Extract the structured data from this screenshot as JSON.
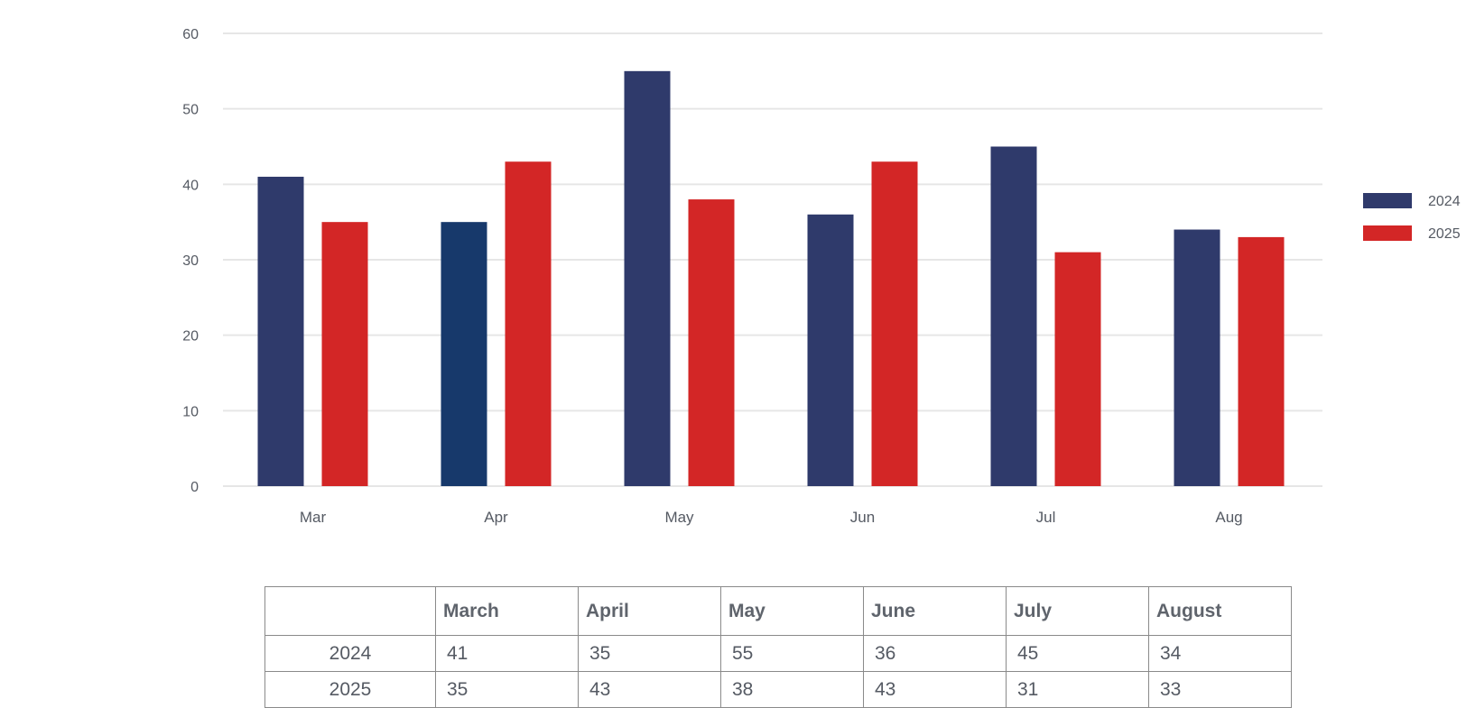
{
  "chart_data": {
    "type": "bar",
    "categories": [
      "Mar",
      "Apr",
      "May",
      "Jun",
      "Jul",
      "Aug"
    ],
    "series": [
      {
        "name": "2024",
        "values": [
          41,
          35,
          55,
          36,
          45,
          34
        ],
        "color": "#2f3a6b"
      },
      {
        "name": "2025",
        "values": [
          35,
          43,
          38,
          43,
          31,
          33
        ],
        "color": "#d32626"
      }
    ],
    "highlight_color": "#17396b",
    "ylim": [
      0,
      60
    ],
    "yticks": [
      0,
      10,
      20,
      30,
      40,
      50,
      60
    ],
    "grid": true,
    "legend": "right"
  },
  "table": {
    "headers": [
      "",
      "March",
      "April",
      "May",
      "June",
      "July",
      "August"
    ],
    "rows": [
      {
        "label": "2024",
        "values": [
          "41",
          "35",
          "55",
          "36",
          "45",
          "34"
        ]
      },
      {
        "label": "2025",
        "values": [
          "35",
          "43",
          "38",
          "43",
          "31",
          "33"
        ]
      }
    ]
  }
}
